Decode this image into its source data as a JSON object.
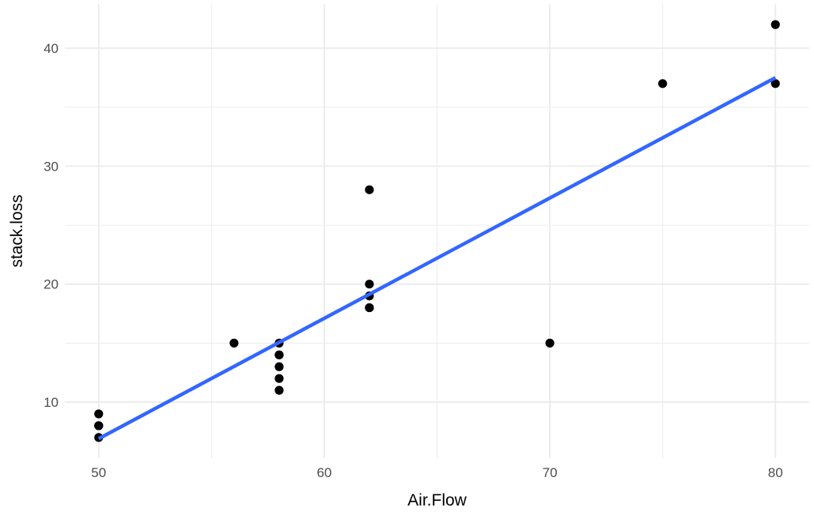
{
  "chart_data": {
    "type": "scatter",
    "xlabel": "Air.Flow",
    "ylabel": "stack.loss",
    "xlim": [
      48.5,
      81.5
    ],
    "ylim": [
      5.25,
      43.75
    ],
    "x_ticks": [
      50,
      60,
      70,
      80
    ],
    "y_ticks": [
      10,
      20,
      30,
      40
    ],
    "x_minor": [
      55,
      65,
      75
    ],
    "y_minor": [
      15,
      25,
      35
    ],
    "grid": true,
    "points": [
      {
        "x": 80,
        "y": 42
      },
      {
        "x": 80,
        "y": 37
      },
      {
        "x": 75,
        "y": 37
      },
      {
        "x": 62,
        "y": 28
      },
      {
        "x": 62,
        "y": 18
      },
      {
        "x": 62,
        "y": 18
      },
      {
        "x": 62,
        "y": 19
      },
      {
        "x": 62,
        "y": 20
      },
      {
        "x": 58,
        "y": 15
      },
      {
        "x": 58,
        "y": 14
      },
      {
        "x": 58,
        "y": 14
      },
      {
        "x": 58,
        "y": 13
      },
      {
        "x": 58,
        "y": 11
      },
      {
        "x": 58,
        "y": 12
      },
      {
        "x": 50,
        "y": 8
      },
      {
        "x": 50,
        "y": 7
      },
      {
        "x": 50,
        "y": 8
      },
      {
        "x": 50,
        "y": 8
      },
      {
        "x": 50,
        "y": 9
      },
      {
        "x": 56,
        "y": 15
      },
      {
        "x": 70,
        "y": 15
      }
    ],
    "fit_line": {
      "method": "linear",
      "color": "#3366FF",
      "x": [
        50,
        80
      ],
      "y": [
        6.9,
        37.5
      ]
    },
    "point_color": "#000000",
    "grid_color": "#ebebeb",
    "background": "#ffffff"
  }
}
